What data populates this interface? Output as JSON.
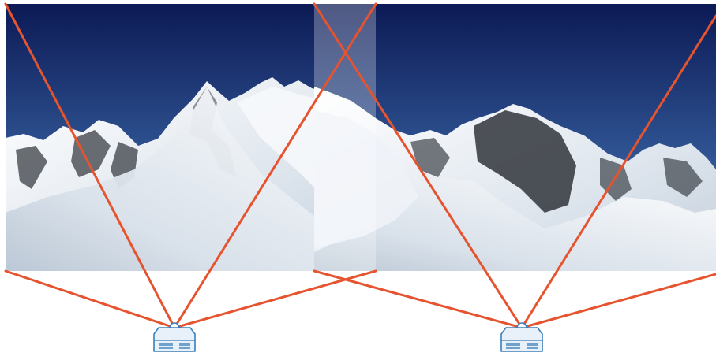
{
  "diagram": {
    "projectors": [
      {
        "name": "left-projector"
      },
      {
        "name": "right-projector"
      }
    ],
    "images": [
      {
        "name": "left-projected-image"
      },
      {
        "name": "right-projected-image"
      }
    ],
    "overlap_region": {
      "name": "edge-blend-overlap"
    }
  },
  "colors": {
    "beam": "#e6532f",
    "sky_top": "#0c1a55",
    "sky_bottom": "#4a7fc1",
    "snow": "#f3f6fa",
    "rock": "#2f3338",
    "projector_outline": "#3b7fb9",
    "projector_fill": "#e8f1f9",
    "overlap_tint": "#ffffff",
    "background": "#ffffff"
  }
}
